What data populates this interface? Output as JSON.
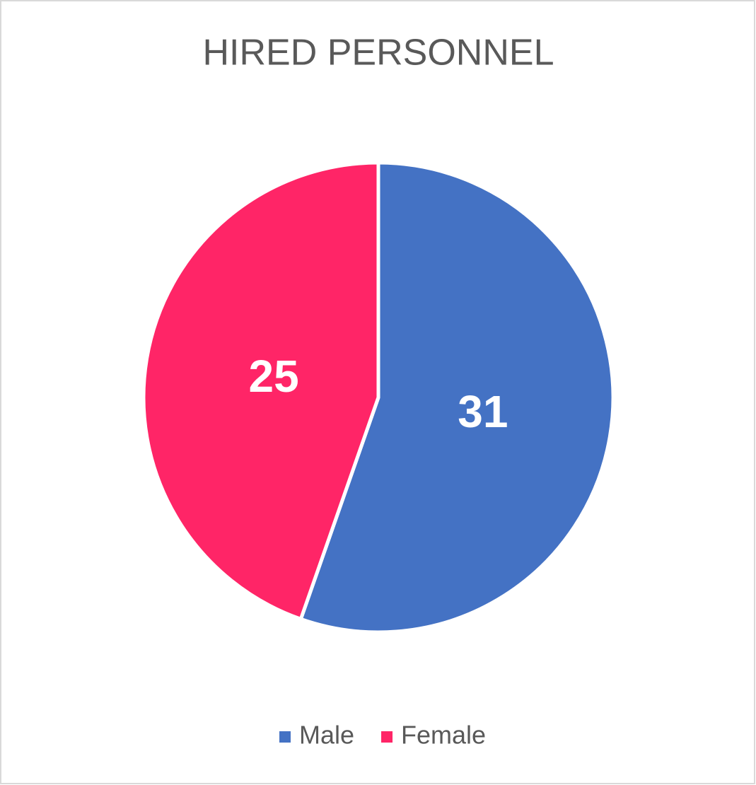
{
  "chart_data": {
    "type": "pie",
    "title": "HIRED PERSONNEL",
    "categories": [
      "Male",
      "Female"
    ],
    "values": [
      31,
      25
    ],
    "colors": [
      "#4472c4",
      "#ff2567"
    ],
    "legend": "bottom"
  }
}
